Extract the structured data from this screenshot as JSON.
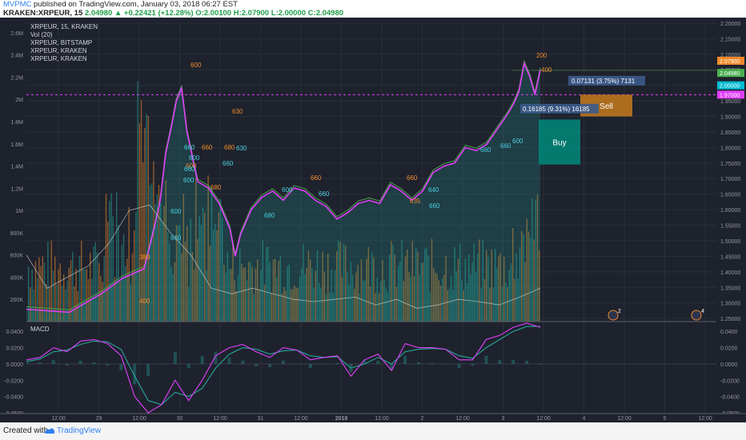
{
  "header": {
    "brand": "MVPMC",
    "published": "published on TradingView.com, January 03, 2018 06:27 EST",
    "symbol": "KRAKEN:XRPEUR, 15",
    "last": "2.04980",
    "change": "▲ +0.22421 (+12.28%)",
    "ohlc": "O:2.00100 H:2.07900 L:2.00000 C:2.04980"
  },
  "footer": {
    "created": "Created with",
    "brand": "TradingView"
  },
  "colors": {
    "background": "#1e222d",
    "price_line": "#e040fb",
    "area_fill": "#26a69a",
    "volume_up": "#26a69a",
    "volume_down": "#ef8a2a",
    "macd_line": "#e040fb",
    "signal_line": "#26a69a",
    "buy_box": "#00897b",
    "sell_box": "#c77a1c",
    "level_line": "#e040fb"
  },
  "chart_data": {
    "type": "line",
    "legend": [
      "XRPEUR, 15, KRAKEN",
      "Vol (20)",
      "XRPEUR, BITSTAMP",
      "XRPEUR, KRAKEN",
      "XRPEUR, KRAKEN"
    ],
    "x_ticks": [
      "12:00",
      "29",
      "12:00",
      "30",
      "12:00",
      "31",
      "12:00",
      "2018",
      "12:00",
      "2",
      "12:00",
      "3",
      "12:00",
      "4",
      "12:00",
      "5",
      "12:00"
    ],
    "price_axis": {
      "ticks": [
        "2.20000",
        "2.15000",
        "2.10000",
        "2.05000",
        "2.00000",
        "1.95000",
        "1.90000",
        "1.85000",
        "1.80000",
        "1.75000",
        "1.70000",
        "1.65000",
        "1.60000",
        "1.55000",
        "1.50000",
        "1.45000",
        "1.40000",
        "1.35000",
        "1.30000",
        "1.25000"
      ],
      "range": [
        1.24,
        2.205
      ],
      "labels": {
        "high": "2.07900",
        "last": "2.04980",
        "sell_level": "2.00000",
        "buy_level": "1.97000"
      }
    },
    "volume_axis": {
      "ticks": [
        "2.6M",
        "2.4M",
        "2.2M",
        "2M",
        "1.8M",
        "1.6M",
        "1.4M",
        "1.2M",
        "1M",
        "800K",
        "600K",
        "400K",
        "200K"
      ],
      "range": [
        0,
        2.7
      ]
    },
    "price_series": {
      "name": "XRPEUR, 15, KRAKEN",
      "x": [
        0,
        8,
        14,
        18,
        22,
        24,
        25,
        26,
        27,
        28,
        29,
        30,
        32,
        34,
        36,
        38,
        39,
        40,
        42,
        44,
        46,
        48,
        50,
        52,
        54,
        56,
        58,
        60,
        62,
        64,
        66,
        68,
        70,
        72,
        74,
        76,
        78,
        80,
        82,
        84,
        86,
        88,
        90,
        91,
        92,
        93,
        94,
        95,
        96
      ],
      "y": [
        1.28,
        1.27,
        1.33,
        1.38,
        1.41,
        1.55,
        1.63,
        1.78,
        1.86,
        1.95,
        1.99,
        1.85,
        1.69,
        1.67,
        1.62,
        1.54,
        1.45,
        1.52,
        1.6,
        1.64,
        1.66,
        1.63,
        1.67,
        1.66,
        1.63,
        1.61,
        1.57,
        1.59,
        1.62,
        1.63,
        1.62,
        1.68,
        1.66,
        1.63,
        1.66,
        1.72,
        1.74,
        1.75,
        1.8,
        1.79,
        1.81,
        1.86,
        1.91,
        1.94,
        1.98,
        2.07,
        2.03,
        1.97,
        2.049
      ]
    },
    "macd": {
      "name": "MACD",
      "ticks": [
        "0.0400",
        "0.0200",
        "0.0000",
        "-0.0200",
        "-0.0400",
        "-0.0600"
      ],
      "range": [
        -0.061,
        0.052
      ],
      "macd_line": [
        0.005,
        0.008,
        0.02,
        0.015,
        0.028,
        0.03,
        0.025,
        0.01,
        -0.04,
        -0.06,
        -0.05,
        -0.02,
        -0.045,
        -0.02,
        0.01,
        0.02,
        0.024,
        0.015,
        0.008,
        0.02,
        0.017,
        0.005,
        0.008,
        0.01,
        -0.015,
        0.005,
        0.012,
        -0.008,
        0.025,
        0.02,
        0.02,
        0.018,
        0.005,
        0.005,
        0.03,
        0.035,
        0.045,
        0.05,
        0.045
      ],
      "signal_line": [
        0.003,
        0.006,
        0.015,
        0.017,
        0.024,
        0.028,
        0.027,
        0.018,
        -0.015,
        -0.045,
        -0.05,
        -0.035,
        -0.04,
        -0.03,
        -0.005,
        0.012,
        0.02,
        0.018,
        0.012,
        0.016,
        0.017,
        0.01,
        0.008,
        0.009,
        -0.005,
        0.0,
        0.008,
        0.0,
        0.015,
        0.018,
        0.019,
        0.018,
        0.01,
        0.007,
        0.02,
        0.03,
        0.04,
        0.046,
        0.046
      ]
    },
    "annotations": {
      "upper_box": "0.07131 (3.75%) 7131",
      "lower_box": "0.16185 (9.31%) 16185",
      "sell": "Sell",
      "buy": "Buy",
      "markers_orange": [
        "600",
        "630",
        "680",
        "660",
        "600",
        "380",
        "400",
        "680",
        "660",
        "635",
        "660",
        "200",
        "400"
      ],
      "markers_teal": [
        "660",
        "600",
        "660",
        "600",
        "630",
        "680",
        "660",
        "600",
        "660",
        "600",
        "660",
        "640",
        "660",
        "660",
        "660",
        "600"
      ],
      "bubbles": [
        "2",
        "4"
      ]
    }
  }
}
